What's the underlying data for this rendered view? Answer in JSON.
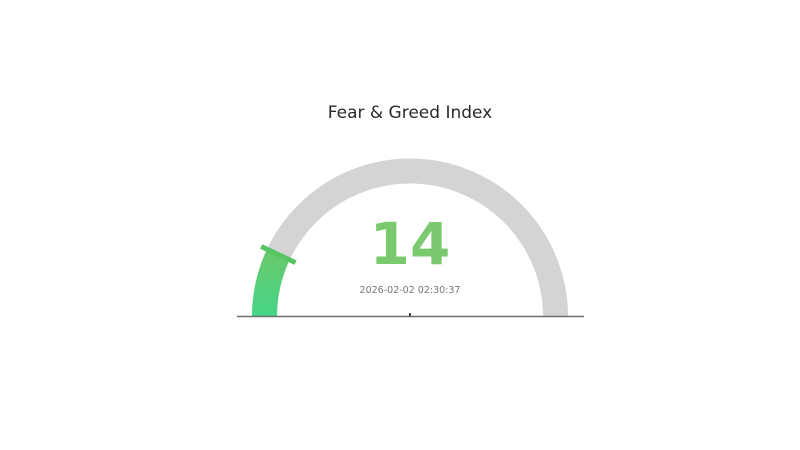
{
  "chart_data": {
    "type": "gauge",
    "title": "Fear & Greed Index",
    "value": 14,
    "min": 0,
    "max": 100,
    "timestamp": "2026-02-02 02:30:37",
    "layout_hints": {
      "shape": "semicircle",
      "sweep_degrees": 180,
      "bar_fill": "gradient",
      "threshold_marker_at_value": true,
      "axis_tick_labels": "none",
      "baseline": "horizontal line under gauge with small center tick"
    },
    "colors": {
      "track": "#d4d4d4",
      "bar_gradient_start": "#6ec766",
      "bar_gradient_end": "#45d687",
      "threshold": "#57c561",
      "value_text": "#7bc96e",
      "timestamp_text": "#757575",
      "title_text": "#2a2a2a",
      "baseline": "#6e6e6e",
      "center_tick": "#3f3f3f",
      "background": "#ffffff"
    }
  }
}
